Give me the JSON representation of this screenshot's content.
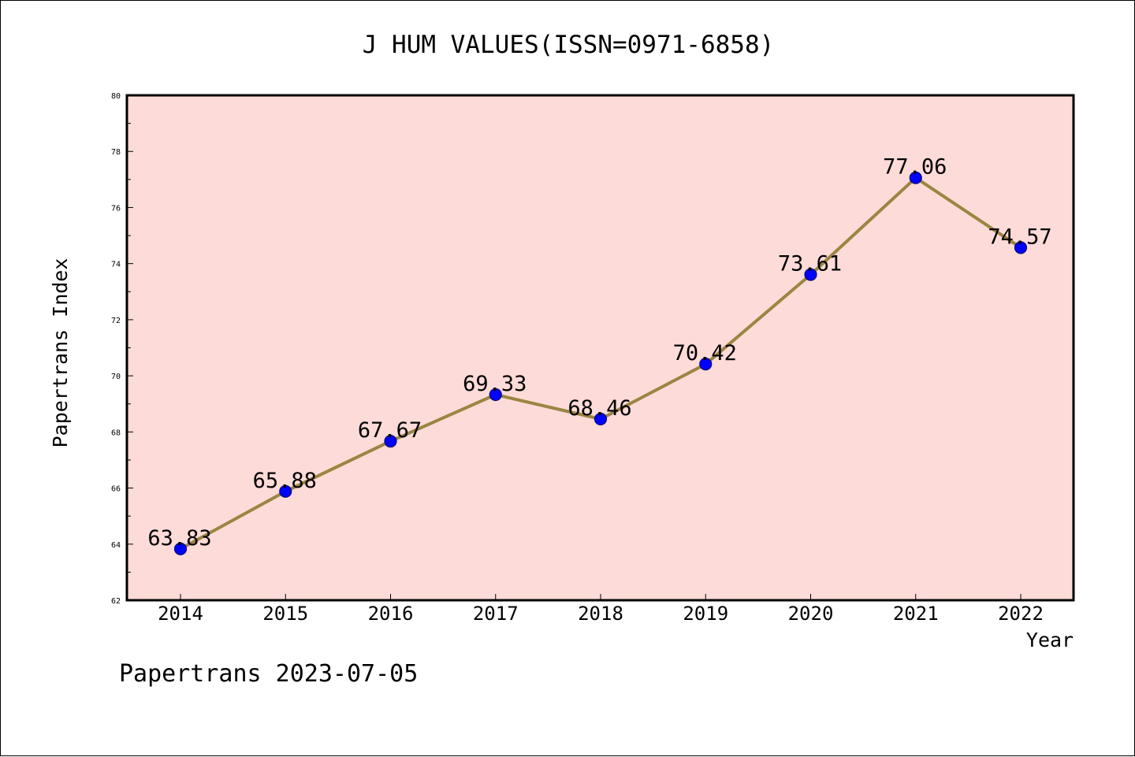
{
  "chart_data": {
    "type": "line",
    "title": "J HUM VALUES(ISSN=0971-6858)",
    "xlabel": "Year",
    "ylabel": "Papertrans Index",
    "categories": [
      "2014",
      "2015",
      "2016",
      "2017",
      "2018",
      "2019",
      "2020",
      "2021",
      "2022"
    ],
    "values": [
      63.83,
      65.88,
      67.67,
      69.33,
      68.46,
      70.42,
      73.61,
      77.06,
      74.57
    ],
    "data_labels": [
      "63.83",
      "65.88",
      "67.67",
      "69.33",
      "68.46",
      "70.42",
      "73.61",
      "77.06",
      "74.57"
    ],
    "ylim": [
      62,
      80
    ],
    "yticks": [
      "62",
      "64",
      "66",
      "68",
      "70",
      "72",
      "74",
      "76",
      "78",
      "80"
    ],
    "grid": false,
    "legend": "none"
  },
  "footer": "Papertrans 2023-07-05",
  "colors": {
    "plot_background": "#fddbd8",
    "line": "#9b8542",
    "marker": "#0000ff",
    "marker_edge": "#0a0a6e"
  }
}
